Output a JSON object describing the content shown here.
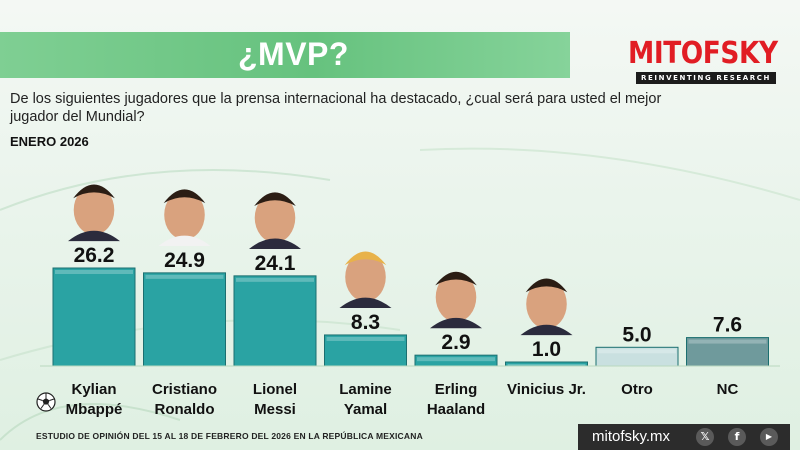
{
  "title": "¿MVP?",
  "brand": {
    "name": "MITOFSKY",
    "tagline": "REINVENTING RESEARCH",
    "color": "#e11d24"
  },
  "question": "De los siguientes jugadores que la prensa internacional ha destacado, ¿cual será para usted el mejor jugador del Mundial?",
  "period": "ENERO 2026",
  "chart_data": {
    "type": "bar",
    "categories": [
      "Kylian\nMbappé",
      "Cristiano\nRonaldo",
      "Lionel\nMessi",
      "Lamine\nYamal",
      "Erling\nHaaland",
      "Vinicius Jr.",
      "Otro",
      "NC"
    ],
    "values": [
      26.2,
      24.9,
      24.1,
      8.3,
      2.9,
      1.0,
      5.0,
      7.6
    ],
    "value_labels": [
      "26.2",
      "24.9",
      "24.1",
      "8.3",
      "2.9",
      "1.0",
      "5.0",
      "7.6"
    ],
    "has_photo": [
      true,
      true,
      true,
      true,
      true,
      true,
      false,
      false
    ],
    "colors": [
      "#2aa3a3",
      "#2aa3a3",
      "#2aa3a3",
      "#2aa3a3",
      "#2aa3a3",
      "#2aa3a3",
      "#c9e0e0",
      "#6f9a9c"
    ],
    "ylim": [
      0,
      26.2
    ]
  },
  "footer": {
    "note": "ESTUDIO DE OPINIÓN DEL 15 AL 18  DE FEBRERO DEL 2026 EN LA REPÚBLICA MEXICANA",
    "url": "mitofsky.mx",
    "social_icons": [
      "x-icon",
      "facebook-icon",
      "youtube-icon"
    ]
  }
}
